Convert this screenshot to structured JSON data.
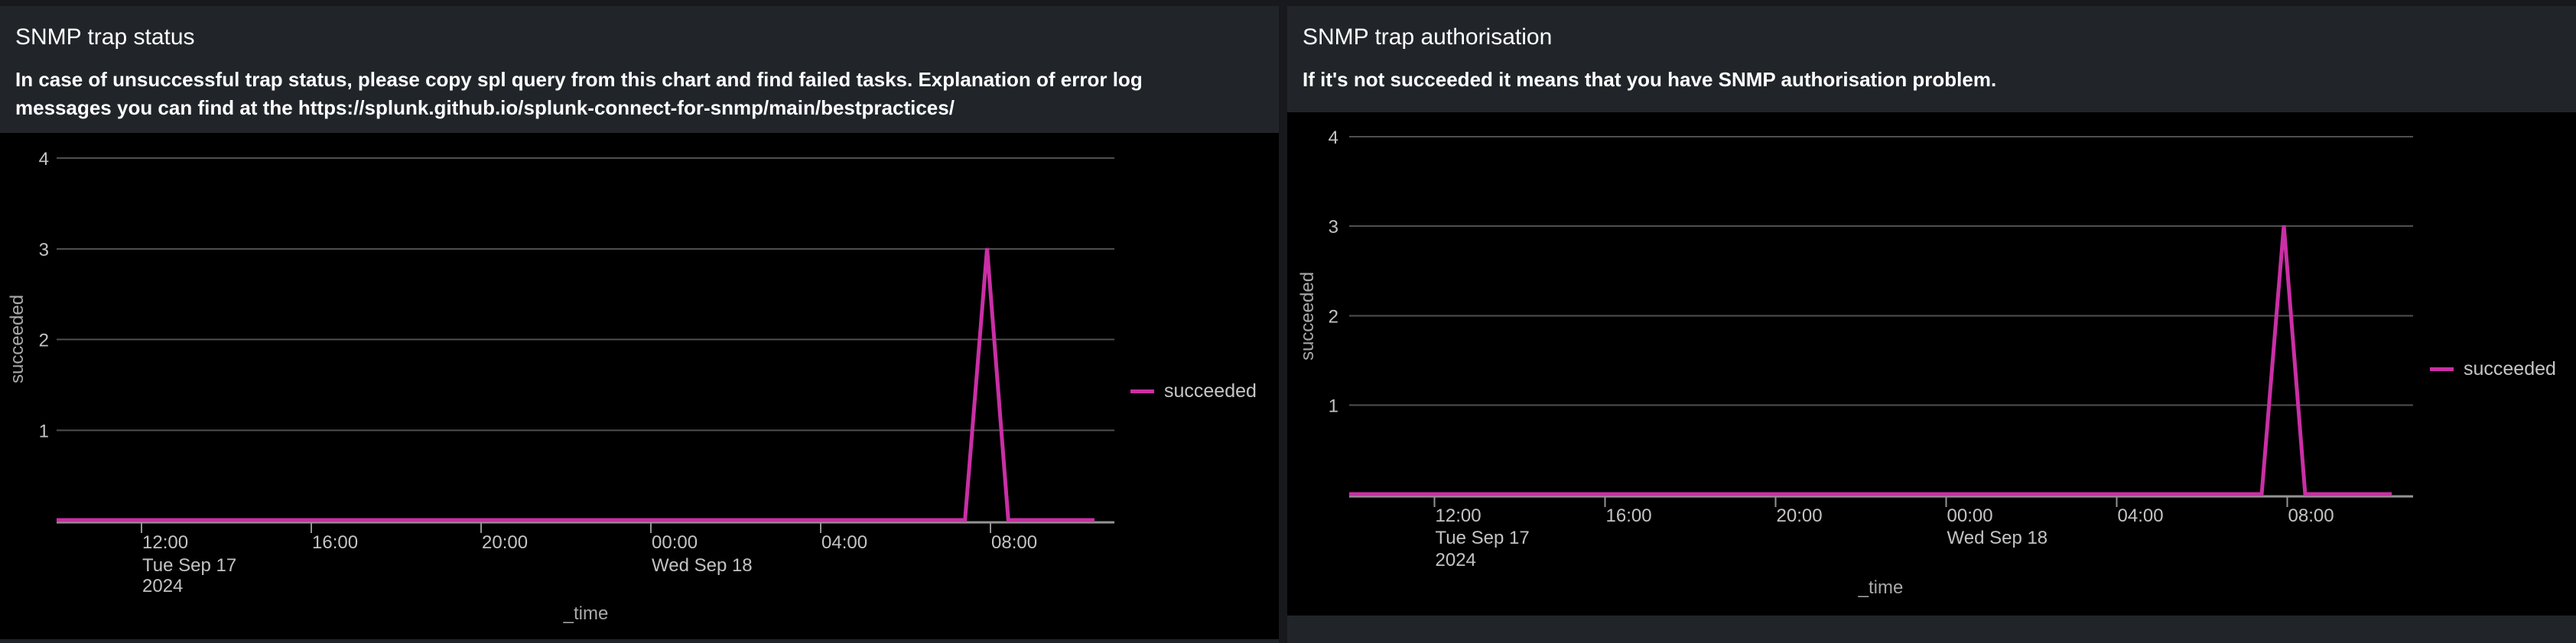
{
  "colors": {
    "outer_bg": "#17191c",
    "panel_bg": "#212529",
    "chart_bg": "#000000",
    "grid": "#4f4f4f",
    "axis": "#949494",
    "tick_label": "#c3c3c3",
    "axis_title": "#a9a9a9",
    "series_pink": "#ca2fa5",
    "title_text": "#ffffff",
    "legend_text": "#c6c6c6"
  },
  "panels": [
    {
      "title": "SNMP trap status",
      "description_lines": [
        "In case of unsuccessful trap status, please copy spl query from this chart and find failed tasks. Explanation of error log",
        "messages you can find at the https://splunk.github.io/splunk-connect-for-snmp/main/bestpractices/"
      ],
      "legend": "succeeded"
    },
    {
      "title": "SNMP trap authorisation",
      "description_lines": [
        "If it's not succeeded it means that you have SNMP authorisation problem."
      ],
      "legend": "succeeded"
    }
  ],
  "chart_data": [
    {
      "type": "line",
      "title": "SNMP trap status",
      "xlabel": "_time",
      "ylabel": "succeeded",
      "ymin": 0,
      "ymax": 4,
      "yticks": [
        1,
        2,
        3,
        4
      ],
      "grid": "horizontal",
      "legend_position": "right",
      "legend_entries": [
        "succeeded"
      ],
      "x_unit": "hours since Tue Sep 17 2024 10:00",
      "xticks": [
        {
          "hour": 2,
          "label": "12:00",
          "date": "Tue Sep 17",
          "year": "2024"
        },
        {
          "hour": 6,
          "label": "16:00"
        },
        {
          "hour": 10,
          "label": "20:00"
        },
        {
          "hour": 14,
          "label": "00:00",
          "date": "Wed Sep 18"
        },
        {
          "hour": 18,
          "label": "04:00"
        },
        {
          "hour": 22,
          "label": "08:00"
        }
      ],
      "series": [
        {
          "name": "succeeded",
          "color": "#ca2fa5",
          "points": [
            [
              0,
              0
            ],
            [
              21.4,
              0
            ],
            [
              21.92,
              3
            ],
            [
              22.42,
              0
            ],
            [
              24.45,
              0
            ]
          ],
          "summary": "flat at 0 from Tue 10:00, single spike to 3 at ~07:55 Wed Sep 18, back to 0 by ~08:25"
        }
      ]
    },
    {
      "type": "line",
      "title": "SNMP trap authorisation",
      "xlabel": "_time",
      "ylabel": "succeeded",
      "ymin": 0,
      "ymax": 4,
      "yticks": [
        1,
        2,
        3,
        4
      ],
      "grid": "horizontal",
      "legend_position": "right",
      "legend_entries": [
        "succeeded"
      ],
      "x_unit": "hours since Tue Sep 17 2024 10:00",
      "xticks": [
        {
          "hour": 2,
          "label": "12:00",
          "date": "Tue Sep 17",
          "year": "2024"
        },
        {
          "hour": 6,
          "label": "16:00"
        },
        {
          "hour": 10,
          "label": "20:00"
        },
        {
          "hour": 14,
          "label": "00:00",
          "date": "Wed Sep 18"
        },
        {
          "hour": 18,
          "label": "04:00"
        },
        {
          "hour": 22,
          "label": "08:00"
        }
      ],
      "series": [
        {
          "name": "succeeded",
          "color": "#ca2fa5",
          "points": [
            [
              0,
              0
            ],
            [
              21.4,
              0
            ],
            [
              21.92,
              3
            ],
            [
              22.42,
              0
            ],
            [
              24.45,
              0
            ]
          ],
          "summary": "flat at 0 from Tue 10:00, single spike to 3 at ~07:55 Wed Sep 18, back to 0 by ~08:25"
        }
      ]
    }
  ]
}
